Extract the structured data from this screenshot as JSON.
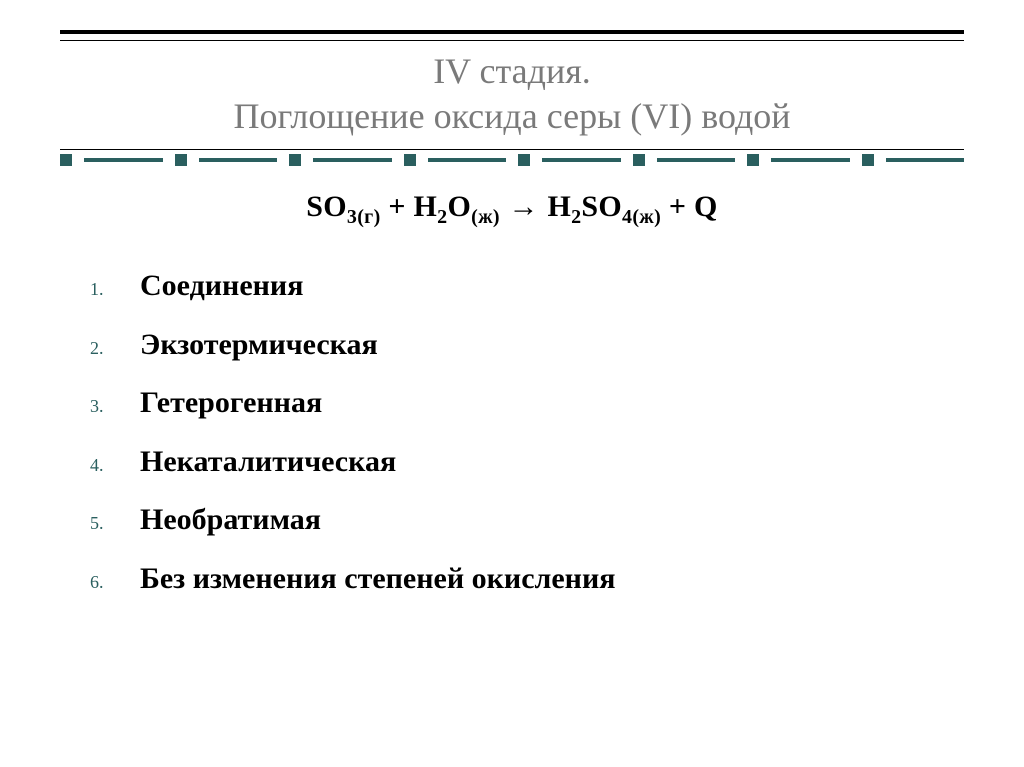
{
  "colors": {
    "accent": "#2a5f5f",
    "title_gray": "#7a7a7a",
    "text": "#000000",
    "background": "#ffffff"
  },
  "typography": {
    "title_fontsize": 36,
    "equation_fontsize": 30,
    "list_fontsize": 30,
    "list_number_fontsize": 18,
    "font_family": "Times New Roman"
  },
  "title": {
    "line1": "IV стадия.",
    "line2": "Поглощение оксида серы (VI) водой"
  },
  "equation": {
    "lhs_species1": "SO",
    "lhs_species1_sub": "3(г)",
    "plus1": " + ",
    "lhs_species2": "Н",
    "lhs_species2_sub": "2",
    "lhs_species2_tail": "О",
    "lhs_species2_phase": "(ж)",
    "arrow": " → ",
    "rhs_species1": "H",
    "rhs_species1_sub1": "2",
    "rhs_species1_mid": "SO",
    "rhs_species1_sub2": "4(ж)",
    "plus2": " + Q"
  },
  "list": {
    "items": [
      "Соединения",
      "Экзотермическая",
      "Гетерогенная",
      "Некаталитическая",
      "Необратимая",
      "Без изменения степеней окисления"
    ]
  },
  "decorative_line": {
    "dot_color": "#2a5f5f",
    "dash_color": "#2a5f5f",
    "dot_size": 12,
    "dash_height": 4,
    "segment_count": 8
  }
}
